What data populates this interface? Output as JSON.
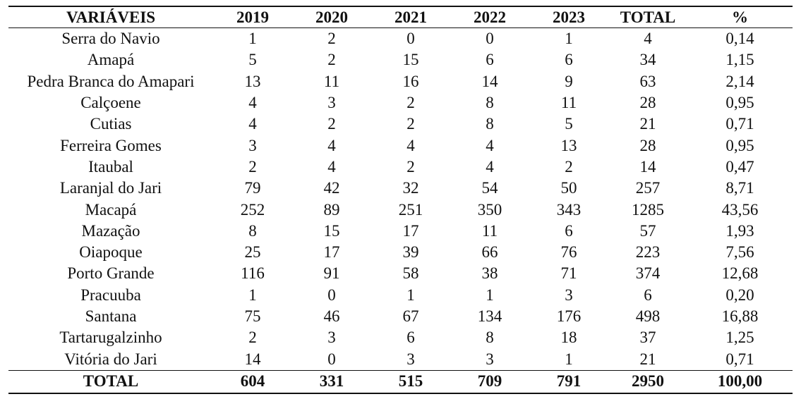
{
  "table": {
    "headers": [
      "VARIÁVEIS",
      "2019",
      "2020",
      "2021",
      "2022",
      "2023",
      "TOTAL",
      "%"
    ],
    "rows": [
      [
        "Serra do Navio",
        "1",
        "2",
        "0",
        "0",
        "1",
        "4",
        "0,14"
      ],
      [
        "Amapá",
        "5",
        "2",
        "15",
        "6",
        "6",
        "34",
        "1,15"
      ],
      [
        "Pedra Branca do Amapari",
        "13",
        "11",
        "16",
        "14",
        "9",
        "63",
        "2,14"
      ],
      [
        "Calçoene",
        "4",
        "3",
        "2",
        "8",
        "11",
        "28",
        "0,95"
      ],
      [
        "Cutias",
        "4",
        "2",
        "2",
        "8",
        "5",
        "21",
        "0,71"
      ],
      [
        "Ferreira Gomes",
        "3",
        "4",
        "4",
        "4",
        "13",
        "28",
        "0,95"
      ],
      [
        "Itaubal",
        "2",
        "4",
        "2",
        "4",
        "2",
        "14",
        "0,47"
      ],
      [
        "Laranjal do Jari",
        "79",
        "42",
        "32",
        "54",
        "50",
        "257",
        "8,71"
      ],
      [
        "Macapá",
        "252",
        "89",
        "251",
        "350",
        "343",
        "1285",
        "43,56"
      ],
      [
        "Mazação",
        "8",
        "15",
        "17",
        "11",
        "6",
        "57",
        "1,93"
      ],
      [
        "Oiapoque",
        "25",
        "17",
        "39",
        "66",
        "76",
        "223",
        "7,56"
      ],
      [
        "Porto Grande",
        "116",
        "91",
        "58",
        "38",
        "71",
        "374",
        "12,68"
      ],
      [
        "Pracuuba",
        "1",
        "0",
        "1",
        "1",
        "3",
        "6",
        "0,20"
      ],
      [
        "Santana",
        "75",
        "46",
        "67",
        "134",
        "176",
        "498",
        "16,88"
      ],
      [
        "Tartarugalzinho",
        "2",
        "3",
        "6",
        "8",
        "18",
        "37",
        "1,25"
      ],
      [
        "Vitória do Jari",
        "14",
        "0",
        "3",
        "3",
        "1",
        "21",
        "0,71"
      ]
    ],
    "total_row": [
      "TOTAL",
      "604",
      "331",
      "515",
      "709",
      "791",
      "2950",
      "100,00"
    ]
  }
}
